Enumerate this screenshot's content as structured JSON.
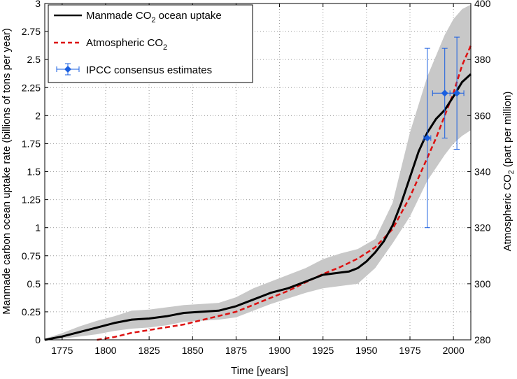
{
  "chart_data": {
    "type": "line",
    "xlabel": "Time [years]",
    "ylabel_left": "Manmade carbon ocean uptake rate (billions of tons per year)",
    "ylabel_right": {
      "main": "Atmospheric CO",
      "sub": "2",
      "tail": " (part per million)"
    },
    "xlim": [
      1765,
      2010
    ],
    "ylim_left": [
      0,
      3
    ],
    "ylim_right": [
      280,
      400
    ],
    "grid": true,
    "legend_position": "top-left",
    "x_ticks": [
      1775,
      1800,
      1825,
      1850,
      1875,
      1900,
      1925,
      1950,
      1975,
      2000
    ],
    "x_tick_labels": [
      "1775",
      "1800",
      "1825",
      "1850",
      "1875",
      "1900",
      "1925",
      "1950",
      "1975",
      "2000"
    ],
    "y_left_ticks": [
      0,
      0.25,
      0.5,
      0.75,
      1,
      1.25,
      1.5,
      1.75,
      2,
      2.25,
      2.5,
      2.75,
      3
    ],
    "y_left_tick_labels": [
      "0",
      "0.25",
      "0.5",
      "0.75",
      "1",
      "1.25",
      "1.5",
      "1.75",
      "2",
      "2.25",
      "2.5",
      "2.75",
      "3"
    ],
    "y_right_ticks": [
      280,
      300,
      320,
      340,
      360,
      380,
      400
    ],
    "y_right_tick_labels": [
      "280",
      "300",
      "320",
      "340",
      "360",
      "380",
      "400"
    ],
    "legend": [
      {
        "main": "Manmade CO",
        "sub": "2",
        "tail": " ocean uptake",
        "style": "solid",
        "color": "#000000"
      },
      {
        "main": "Atmospheric CO",
        "sub": "2",
        "tail": "",
        "style": "dashed",
        "color": "#dd1111"
      },
      {
        "main": "IPCC consensus estimates",
        "sub": "",
        "tail": "",
        "style": "errorbar",
        "color": "#1a5fe0"
      }
    ],
    "series": [
      {
        "name": "Manmade CO2 ocean uptake",
        "axis": "left",
        "color": "#000000",
        "style": "solid",
        "x": [
          1765,
          1775,
          1785,
          1795,
          1805,
          1815,
          1825,
          1835,
          1845,
          1855,
          1865,
          1875,
          1885,
          1895,
          1905,
          1915,
          1925,
          1935,
          1940,
          1945,
          1950,
          1955,
          1960,
          1965,
          1970,
          1975,
          1980,
          1985,
          1990,
          1995,
          2000,
          2005,
          2010
        ],
        "y": [
          0.0,
          0.03,
          0.07,
          0.11,
          0.15,
          0.18,
          0.19,
          0.21,
          0.24,
          0.25,
          0.26,
          0.3,
          0.36,
          0.42,
          0.46,
          0.52,
          0.58,
          0.6,
          0.61,
          0.64,
          0.7,
          0.78,
          0.88,
          1.02,
          1.22,
          1.45,
          1.68,
          1.85,
          1.97,
          2.05,
          2.17,
          2.3,
          2.37
        ]
      },
      {
        "name": "Atmospheric CO2",
        "axis": "right",
        "color": "#dd1111",
        "style": "dashed",
        "x": [
          1795,
          1805,
          1815,
          1825,
          1835,
          1845,
          1855,
          1865,
          1875,
          1885,
          1895,
          1905,
          1915,
          1925,
          1935,
          1945,
          1955,
          1965,
          1975,
          1985,
          1990,
          1995,
          2000,
          2005,
          2010
        ],
        "y": [
          280,
          281,
          282.5,
          283.5,
          284.5,
          285.5,
          287,
          288.5,
          290,
          292.5,
          295,
          297.5,
          300.5,
          303.5,
          306,
          309,
          313,
          319.5,
          331,
          345,
          352,
          360,
          368,
          378,
          385
        ]
      }
    ],
    "uncertainty_band": {
      "axis": "left",
      "color": "#c8c8c8",
      "x": [
        1765,
        1775,
        1785,
        1795,
        1805,
        1815,
        1825,
        1835,
        1845,
        1855,
        1865,
        1875,
        1885,
        1895,
        1905,
        1915,
        1925,
        1935,
        1945,
        1955,
        1965,
        1975,
        1985,
        1995,
        2000,
        2005,
        2010
      ],
      "upper": [
        0.01,
        0.06,
        0.12,
        0.17,
        0.21,
        0.26,
        0.27,
        0.29,
        0.31,
        0.32,
        0.33,
        0.38,
        0.46,
        0.52,
        0.58,
        0.64,
        0.72,
        0.77,
        0.81,
        0.9,
        1.22,
        1.85,
        2.35,
        2.72,
        2.86,
        2.95,
        2.99
      ],
      "lower": [
        0.0,
        0.01,
        0.03,
        0.05,
        0.08,
        0.1,
        0.11,
        0.13,
        0.16,
        0.17,
        0.18,
        0.2,
        0.26,
        0.32,
        0.37,
        0.42,
        0.46,
        0.48,
        0.5,
        0.64,
        0.86,
        1.1,
        1.42,
        1.65,
        1.75,
        1.82,
        1.87
      ]
    },
    "ipcc_estimates": {
      "axis": "left",
      "color": "#1a5fe0",
      "points": [
        {
          "x": 1985,
          "y": 1.8,
          "y_low": 1.0,
          "y_high": 2.6,
          "x_low": 1983,
          "x_high": 1987
        },
        {
          "x": 1995,
          "y": 2.2,
          "y_low": 1.8,
          "y_high": 2.6,
          "x_low": 1988,
          "x_high": 2002
        },
        {
          "x": 2002,
          "y": 2.2,
          "y_low": 1.7,
          "y_high": 2.7,
          "x_low": 1998,
          "x_high": 2006
        }
      ]
    }
  }
}
